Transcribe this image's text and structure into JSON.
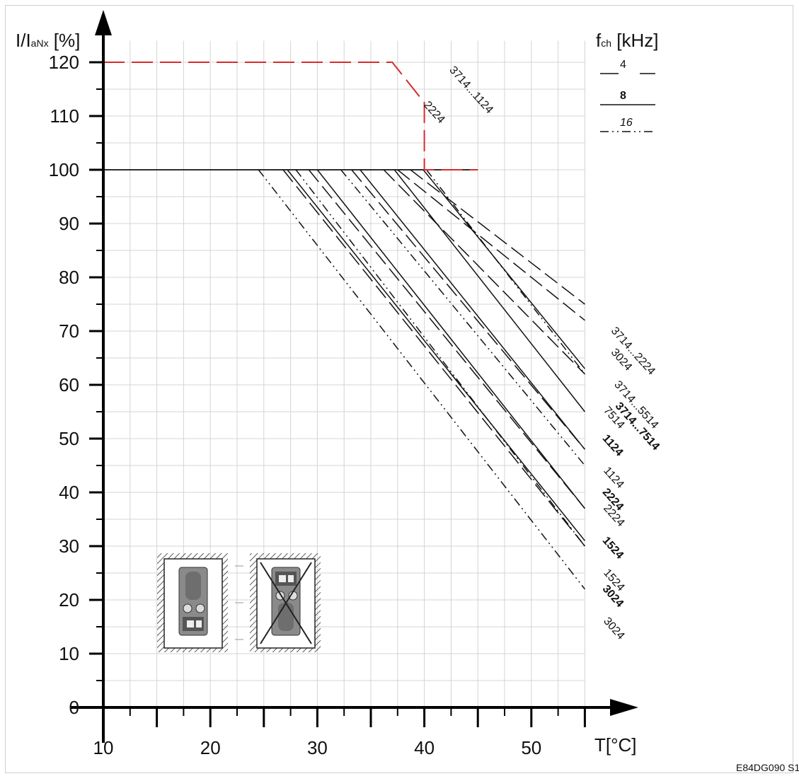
{
  "chart_data": {
    "type": "line",
    "ylabel_main": "I/I",
    "ylabel_sub": "aNx",
    "ylabel_unit": " [%]",
    "xlabel": "T[°C]",
    "fch_main": "f",
    "fch_sub": "ch",
    "fch_unit": " [kHz]",
    "figure_code": "E84DG090 S1",
    "x_ticks": [
      10,
      20,
      30,
      40,
      50
    ],
    "y_ticks": [
      0,
      10,
      20,
      30,
      40,
      50,
      60,
      70,
      80,
      90,
      100,
      110,
      120
    ],
    "xlim": [
      10,
      56
    ],
    "ylim": [
      0,
      128
    ],
    "grid": true,
    "legend": [
      {
        "name": "4",
        "style": "dashed"
      },
      {
        "name": "8",
        "style": "solid"
      },
      {
        "name": "16",
        "style": "dashdotdot"
      }
    ],
    "overload_series": {
      "color": "#d62c2c",
      "points": [
        [
          10,
          120
        ],
        [
          37,
          120
        ],
        [
          40,
          112.5
        ],
        [
          40,
          100
        ],
        [
          45,
          100
        ]
      ]
    },
    "series": [
      {
        "freq": "4",
        "style": "dashed",
        "x": [
          38.7,
          55
        ],
        "y": [
          100,
          75
        ]
      },
      {
        "freq": "4",
        "style": "dashed",
        "x": [
          37.5,
          55
        ],
        "y": [
          100,
          72
        ]
      },
      {
        "freq": "4",
        "style": "dashed",
        "x": [
          36.2,
          55
        ],
        "y": [
          100,
          62
        ]
      },
      {
        "freq": "4",
        "style": "dashed",
        "x": [
          33.2,
          55
        ],
        "y": [
          100,
          48
        ]
      },
      {
        "freq": "4",
        "style": "dashed",
        "x": [
          29.2,
          55
        ],
        "y": [
          100,
          37
        ]
      },
      {
        "freq": "4",
        "style": "dashed",
        "x": [
          26.8,
          55
        ],
        "y": [
          100,
          30
        ]
      },
      {
        "freq": "8",
        "style": "solid",
        "x": [
          39.9,
          55
        ],
        "y": [
          100,
          63
        ]
      },
      {
        "freq": "8",
        "style": "solid",
        "x": [
          37.2,
          55
        ],
        "y": [
          100,
          55
        ]
      },
      {
        "freq": "8",
        "style": "solid",
        "x": [
          34.0,
          55
        ],
        "y": [
          100,
          48
        ]
      },
      {
        "freq": "8",
        "style": "solid",
        "x": [
          30.0,
          55
        ],
        "y": [
          100,
          37
        ]
      },
      {
        "freq": "8",
        "style": "solid",
        "x": [
          27.2,
          55
        ],
        "y": [
          100,
          31
        ]
      },
      {
        "freq": "16",
        "style": "dashdotdot",
        "x": [
          40.2,
          55
        ],
        "y": [
          100,
          62
        ]
      },
      {
        "freq": "16",
        "style": "dashdotdot",
        "x": [
          32.2,
          55
        ],
        "y": [
          100,
          45
        ]
      },
      {
        "freq": "16",
        "style": "dashdotdot",
        "x": [
          28.0,
          55
        ],
        "y": [
          100,
          30
        ]
      },
      {
        "freq": "16",
        "style": "dashdotdot",
        "x": [
          24.5,
          55
        ],
        "y": [
          100,
          22
        ]
      }
    ],
    "annotations": [
      {
        "text": "3714...1124",
        "bold": false,
        "at": [
          42.3,
          118.5
        ]
      },
      {
        "text": "2224",
        "bold": false,
        "at": [
          39.9,
          112
        ]
      },
      {
        "text": "3714...2224",
        "bold": false,
        "at": [
          57.4,
          70
        ]
      },
      {
        "text": "3024",
        "bold": false,
        "at": [
          57.4,
          66
        ]
      },
      {
        "text": "3714...5514",
        "bold": false,
        "at": [
          57.7,
          60
        ]
      },
      {
        "text": "3714...7514",
        "bold": true,
        "at": [
          57.8,
          56
        ]
      },
      {
        "text": "7514",
        "bold": false,
        "at": [
          56.7,
          55.2
        ]
      },
      {
        "text": "1124",
        "bold": true,
        "at": [
          56.6,
          50
        ]
      },
      {
        "text": "1124",
        "bold": false,
        "at": [
          56.7,
          44
        ]
      },
      {
        "text": "2224",
        "bold": true,
        "at": [
          56.6,
          40
        ]
      },
      {
        "text": "2224",
        "bold": false,
        "at": [
          56.7,
          37
        ]
      },
      {
        "text": "1524",
        "bold": true,
        "at": [
          56.6,
          31
        ]
      },
      {
        "text": "1524",
        "bold": false,
        "at": [
          56.7,
          25
        ]
      },
      {
        "text": "3024",
        "bold": true,
        "at": [
          56.6,
          22
        ]
      },
      {
        "text": "3024",
        "bold": false,
        "at": [
          56.7,
          16
        ]
      }
    ]
  }
}
